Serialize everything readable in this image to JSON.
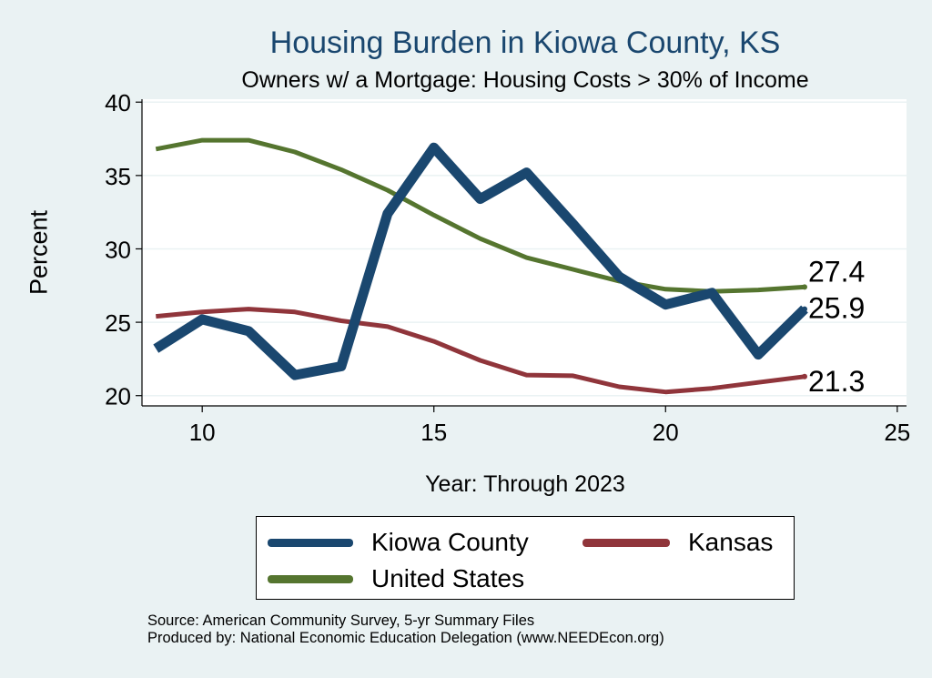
{
  "chart_data": {
    "type": "line",
    "title": "Housing Burden in Kiowa County, KS",
    "subtitle": "Owners w/ a Mortgage: Housing Costs > 30% of Income",
    "xlabel": "Year: Through 2023",
    "ylabel": "Percent",
    "xlim": [
      8.7,
      25.2
    ],
    "ylim": [
      19.3,
      40.2
    ],
    "xticks": [
      10,
      15,
      20,
      25
    ],
    "yticks": [
      20,
      25,
      30,
      35,
      40
    ],
    "grid": true,
    "x": [
      9,
      10,
      11,
      12,
      13,
      14,
      15,
      16,
      17,
      18,
      19,
      20,
      21,
      22,
      23
    ],
    "series": [
      {
        "name": "Kiowa County",
        "color": "#1a476f",
        "values": [
          23.2,
          25.2,
          24.4,
          21.4,
          22.0,
          32.4,
          36.9,
          33.4,
          35.2,
          31.7,
          28.1,
          26.2,
          27.0,
          22.8,
          25.9
        ],
        "end_label": "25.9"
      },
      {
        "name": "Kansas",
        "color": "#90353b",
        "values": [
          25.4,
          25.7,
          25.9,
          25.7,
          25.1,
          24.7,
          23.7,
          22.4,
          21.4,
          21.35,
          20.6,
          20.25,
          20.5,
          20.9,
          21.3
        ],
        "end_label": "21.3"
      },
      {
        "name": "United States",
        "color": "#55752f",
        "values": [
          36.8,
          37.4,
          37.4,
          36.6,
          35.4,
          34.0,
          32.3,
          30.7,
          29.4,
          28.6,
          27.8,
          27.25,
          27.1,
          27.2,
          27.4
        ],
        "end_label": "27.4"
      }
    ],
    "legend_position": "bottom"
  },
  "footer": {
    "source": "Source: American Community Survey, 5-yr Summary Files",
    "produced": "Produced by: National Economic Education Delegation (www.NEEDEcon.org)"
  }
}
